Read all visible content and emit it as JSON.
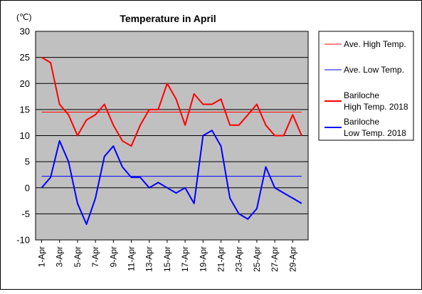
{
  "chart_data": {
    "type": "line",
    "title": "Temperature in April",
    "unit_label": "(℃)",
    "xlabel": "",
    "ylabel": "",
    "ylim": [
      -10,
      30
    ],
    "yticks": [
      -10,
      -5,
      0,
      5,
      10,
      15,
      20,
      25,
      30
    ],
    "grid": true,
    "legend_position": "right",
    "categories": [
      "1-Apr",
      "2-Apr",
      "3-Apr",
      "4-Apr",
      "5-Apr",
      "6-Apr",
      "7-Apr",
      "8-Apr",
      "9-Apr",
      "10-Apr",
      "11-Apr",
      "12-Apr",
      "13-Apr",
      "14-Apr",
      "15-Apr",
      "16-Apr",
      "17-Apr",
      "18-Apr",
      "19-Apr",
      "20-Apr",
      "21-Apr",
      "22-Apr",
      "23-Apr",
      "24-Apr",
      "25-Apr",
      "26-Apr",
      "27-Apr",
      "28-Apr",
      "29-Apr",
      "30-Apr"
    ],
    "tick_labels": [
      "1-Apr",
      "3-Apr",
      "5-Apr",
      "7-Apr",
      "9-Apr",
      "11-Apr",
      "13-Apr",
      "15-Apr",
      "17-Apr",
      "19-Apr",
      "21-Apr",
      "23-Apr",
      "25-Apr",
      "27-Apr",
      "29-Apr"
    ],
    "series": [
      {
        "name": "Ave. High Temp.",
        "legend_lines": [
          "Ave. High Temp."
        ],
        "color": "#ff0000",
        "width": "thin",
        "values": [
          14.5,
          14.5,
          14.5,
          14.5,
          14.5,
          14.5,
          14.5,
          14.5,
          14.5,
          14.5,
          14.5,
          14.5,
          14.5,
          14.5,
          14.5,
          14.5,
          14.5,
          14.5,
          14.5,
          14.5,
          14.5,
          14.5,
          14.5,
          14.5,
          14.5,
          14.5,
          14.5,
          14.5,
          14.5,
          14.5
        ]
      },
      {
        "name": "Ave. Low Temp.",
        "legend_lines": [
          "Ave. Low Temp."
        ],
        "color": "#0000ff",
        "width": "thin",
        "values": [
          2.2,
          2.2,
          2.2,
          2.2,
          2.2,
          2.2,
          2.2,
          2.2,
          2.2,
          2.2,
          2.2,
          2.2,
          2.2,
          2.2,
          2.2,
          2.2,
          2.2,
          2.2,
          2.2,
          2.2,
          2.2,
          2.2,
          2.2,
          2.2,
          2.2,
          2.2,
          2.2,
          2.2,
          2.2,
          2.2
        ]
      },
      {
        "name": "Bariloche High Temp. 2018",
        "legend_lines": [
          "Bariloche",
          "High Temp. 2018"
        ],
        "color": "#ff0000",
        "width": "thick",
        "values": [
          25,
          24,
          16,
          14,
          10,
          13,
          14,
          16,
          12,
          9,
          8,
          12,
          15,
          15,
          20,
          17,
          12,
          18,
          16,
          16,
          17,
          12,
          12,
          14,
          16,
          12,
          10,
          10,
          14,
          10
        ]
      },
      {
        "name": "Bariloche Low Temp. 2018",
        "legend_lines": [
          "Bariloche",
          "Low Temp. 2018"
        ],
        "color": "#0000ff",
        "width": "thick",
        "values": [
          0,
          2,
          9,
          5,
          -3,
          -7,
          -2,
          6,
          8,
          4,
          2,
          2,
          0,
          1,
          0,
          -1,
          0,
          -3,
          10,
          11,
          8,
          -2,
          -5,
          -6,
          -4,
          4,
          0,
          -1,
          -2,
          -3
        ]
      }
    ]
  }
}
